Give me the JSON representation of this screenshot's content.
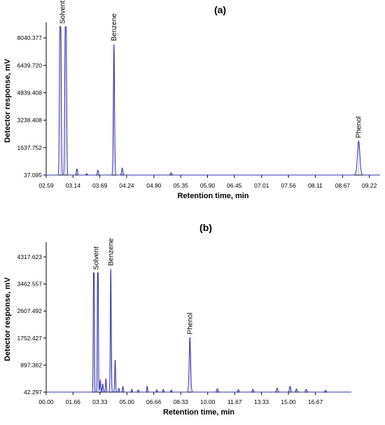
{
  "chart_data": [
    {
      "type": "line",
      "panel_label": "(a)",
      "xlabel": "Retention time, min",
      "ylabel": "Detector response, mV",
      "xlim": [
        2.59,
        9.44
      ],
      "ylim": [
        37.095,
        8700
      ],
      "x_ticks": [
        "02.59",
        "03.14",
        "03.69",
        "04.24",
        "04.80",
        "05.35",
        "05.90",
        "06.45",
        "07.01",
        "07.56",
        "08.11",
        "08.67",
        "09.22"
      ],
      "x_tick_values": [
        2.59,
        3.14,
        3.69,
        4.24,
        4.8,
        5.35,
        5.9,
        6.45,
        7.01,
        7.56,
        8.11,
        8.67,
        9.22
      ],
      "y_ticks": [
        "37.095",
        "1637.752",
        "3238.408",
        "4839.408",
        "6439.720",
        "8040.377"
      ],
      "y_tick_values": [
        37.095,
        1637.752,
        3238.408,
        4839.408,
        6439.72,
        8040.377
      ],
      "annotations": [
        {
          "text": "Solvent",
          "x": 2.93
        },
        {
          "text": "Benzene",
          "x": 3.98
        },
        {
          "text": "Phenol",
          "x": 9.0
        }
      ],
      "series": [
        {
          "color": "#3333aa",
          "baseline": 37.095,
          "peaks": [
            {
              "x": 2.88,
              "y": 8700,
              "w": 0.01,
              "flat": 0.01
            },
            {
              "x": 2.99,
              "y": 8700,
              "w": 0.01,
              "flat": 0.01
            },
            {
              "x": 3.22,
              "y": 400,
              "w": 0.012
            },
            {
              "x": 3.42,
              "y": 120,
              "w": 0.01
            },
            {
              "x": 3.65,
              "y": 320,
              "w": 0.012
            },
            {
              "x": 3.98,
              "y": 7700,
              "w": 0.012
            },
            {
              "x": 4.15,
              "y": 450,
              "w": 0.013
            },
            {
              "x": 5.15,
              "y": 170,
              "w": 0.015
            },
            {
              "x": 9.0,
              "y": 2030,
              "w": 0.025
            }
          ]
        }
      ]
    },
    {
      "type": "line",
      "panel_label": "(b)",
      "xlabel": "Retention time, min",
      "ylabel": "Detector response, mV",
      "xlim": [
        0.0,
        18.9
      ],
      "ylim": [
        42.297,
        4650
      ],
      "x_ticks": [
        "00.00",
        "01.66",
        "03.33",
        "05.00",
        "06.66",
        "08.33",
        "10.00",
        "11.67",
        "13.33",
        "15.00",
        "16.67"
      ],
      "x_tick_values": [
        0.0,
        1.66,
        3.33,
        5.0,
        6.66,
        8.33,
        10.0,
        11.67,
        13.33,
        15.0,
        16.67
      ],
      "y_ticks": [
        "42.297",
        "897.362",
        "1752.427",
        "2607.492",
        "3462.557",
        "4317.623"
      ],
      "y_tick_values": [
        42.297,
        897.362,
        1752.427,
        2607.492,
        3462.557,
        4317.623
      ],
      "annotations": [
        {
          "text": "Solvent",
          "x": 3.1
        },
        {
          "text": "Benzene",
          "x": 4.0
        },
        {
          "text": "Phenol",
          "x": 8.9
        }
      ],
      "series": [
        {
          "color": "#3333aa",
          "baseline": 42.297,
          "peaks": [
            {
              "x": 2.95,
              "y": 3820,
              "w": 0.02,
              "flat": 0.02
            },
            {
              "x": 3.2,
              "y": 3820,
              "w": 0.02,
              "flat": 0.02
            },
            {
              "x": 3.35,
              "y": 420,
              "w": 0.03
            },
            {
              "x": 3.5,
              "y": 300,
              "w": 0.03
            },
            {
              "x": 3.7,
              "y": 460,
              "w": 0.03
            },
            {
              "x": 4.0,
              "y": 3950,
              "w": 0.03
            },
            {
              "x": 4.27,
              "y": 1060,
              "w": 0.03
            },
            {
              "x": 4.5,
              "y": 160,
              "w": 0.03
            },
            {
              "x": 4.75,
              "y": 220,
              "w": 0.03
            },
            {
              "x": 5.3,
              "y": 130,
              "w": 0.03
            },
            {
              "x": 5.7,
              "y": 110,
              "w": 0.03
            },
            {
              "x": 6.25,
              "y": 230,
              "w": 0.03
            },
            {
              "x": 6.85,
              "y": 120,
              "w": 0.03
            },
            {
              "x": 7.25,
              "y": 130,
              "w": 0.03
            },
            {
              "x": 7.75,
              "y": 110,
              "w": 0.03
            },
            {
              "x": 8.9,
              "y": 1780,
              "w": 0.045
            },
            {
              "x": 10.6,
              "y": 150,
              "w": 0.04
            },
            {
              "x": 11.9,
              "y": 120,
              "w": 0.04
            },
            {
              "x": 12.8,
              "y": 130,
              "w": 0.04
            },
            {
              "x": 14.3,
              "y": 170,
              "w": 0.04
            },
            {
              "x": 15.1,
              "y": 230,
              "w": 0.04
            },
            {
              "x": 15.5,
              "y": 140,
              "w": 0.04
            },
            {
              "x": 16.1,
              "y": 130,
              "w": 0.04
            },
            {
              "x": 17.3,
              "y": 100,
              "w": 0.04
            }
          ]
        }
      ]
    }
  ]
}
